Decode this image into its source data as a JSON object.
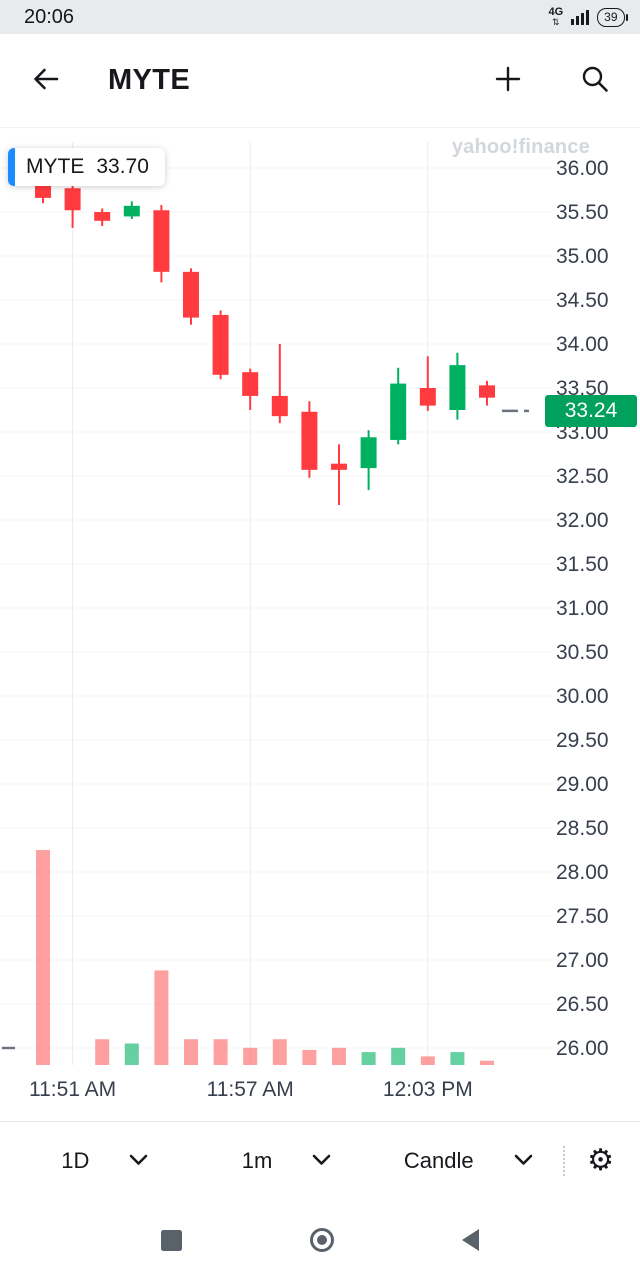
{
  "status_bar": {
    "time": "20:06",
    "network_type": "4G",
    "battery_level": "39"
  },
  "header": {
    "title": "MYTE"
  },
  "chart": {
    "tooltip": {
      "symbol": "MYTE",
      "price": "33.70"
    },
    "watermark": "yahoo!finance",
    "current_price_label": "33.24",
    "colors": {
      "up": "#00b061",
      "down": "#ff3b3f",
      "vol_up": "rgba(0,176,97,0.6)",
      "vol_down": "rgba(255,82,82,0.55)",
      "badge": "#00a15c",
      "axis_text": "#373e4d",
      "grid_h": "#f3f4f6",
      "grid_v": "#e9ebee",
      "tooltip_accent": "#1a8cff",
      "price_dash": "#6b7280"
    }
  },
  "chart_data": {
    "type": "candlestick",
    "symbol": "MYTE",
    "interval": "1m",
    "y_axis": {
      "min": 26.0,
      "max": 36.0,
      "step": 0.5
    },
    "current_price": 33.24,
    "x_axis_labels": [
      {
        "index": 1,
        "label": "11:51 AM"
      },
      {
        "index": 7,
        "label": "11:57 AM"
      },
      {
        "index": 13,
        "label": "12:03 PM"
      }
    ],
    "volume_units": "relative_percent_of_max_bar",
    "candles": [
      {
        "t": "11:50",
        "o": 35.82,
        "h": 35.92,
        "l": 35.6,
        "c": 35.66,
        "v": 100
      },
      {
        "t": "11:51",
        "o": 35.77,
        "h": 35.8,
        "l": 35.32,
        "c": 35.52,
        "v": 0
      },
      {
        "t": "11:52",
        "o": 35.5,
        "h": 35.54,
        "l": 35.34,
        "c": 35.4,
        "v": 12
      },
      {
        "t": "11:53",
        "o": 35.45,
        "h": 35.62,
        "l": 35.42,
        "c": 35.57,
        "v": 10
      },
      {
        "t": "11:54",
        "o": 35.52,
        "h": 35.58,
        "l": 34.7,
        "c": 34.82,
        "v": 44
      },
      {
        "t": "11:55",
        "o": 34.82,
        "h": 34.86,
        "l": 34.22,
        "c": 34.3,
        "v": 12
      },
      {
        "t": "11:56",
        "o": 34.33,
        "h": 34.38,
        "l": 33.6,
        "c": 33.65,
        "v": 12
      },
      {
        "t": "11:57",
        "o": 33.68,
        "h": 33.72,
        "l": 33.25,
        "c": 33.41,
        "v": 8
      },
      {
        "t": "11:58",
        "o": 33.41,
        "h": 34.0,
        "l": 33.1,
        "c": 33.18,
        "v": 12
      },
      {
        "t": "11:59",
        "o": 33.23,
        "h": 33.35,
        "l": 32.48,
        "c": 32.57,
        "v": 7
      },
      {
        "t": "12:00",
        "o": 32.64,
        "h": 32.86,
        "l": 32.17,
        "c": 32.57,
        "v": 8
      },
      {
        "t": "12:01",
        "o": 32.59,
        "h": 33.02,
        "l": 32.34,
        "c": 32.94,
        "v": 6
      },
      {
        "t": "12:02",
        "o": 32.91,
        "h": 33.73,
        "l": 32.86,
        "c": 33.55,
        "v": 8
      },
      {
        "t": "12:03",
        "o": 33.5,
        "h": 33.86,
        "l": 33.24,
        "c": 33.3,
        "v": 4
      },
      {
        "t": "12:04",
        "o": 33.25,
        "h": 33.9,
        "l": 33.14,
        "c": 33.76,
        "v": 6
      },
      {
        "t": "12:05",
        "o": 33.53,
        "h": 33.58,
        "l": 33.3,
        "c": 33.39,
        "v": 2
      }
    ]
  },
  "toolbar": {
    "range": "1D",
    "interval": "1m",
    "chart_type": "Candle"
  },
  "icons": {
    "back": "arrow-left",
    "add": "plus",
    "search": "magnifier",
    "settings": "gear",
    "network": "signal-bars",
    "battery": "battery-pill",
    "nav_recents": "square",
    "nav_home": "circle",
    "nav_back": "triangle-left"
  }
}
